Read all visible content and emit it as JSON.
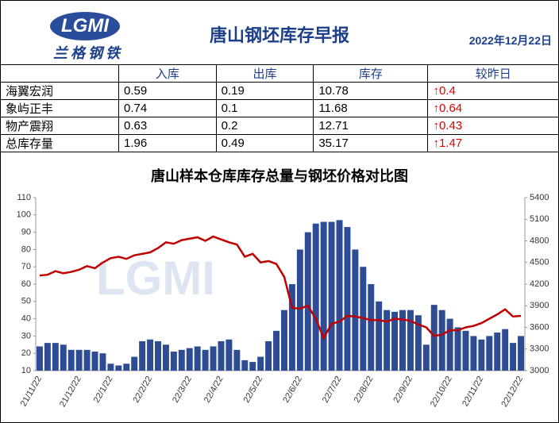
{
  "header": {
    "logo": "LGMI",
    "logo_sub": "兰格钢铁",
    "title": "唐山钢坯库存早报",
    "date": "2022年12月22日"
  },
  "table": {
    "columns": [
      "入库",
      "出库",
      "库存",
      "较昨日"
    ],
    "rows": [
      [
        "海翼宏润",
        "0.59",
        "0.19",
        "10.78",
        "↑0.4"
      ],
      [
        "象屿正丰",
        "0.74",
        "0.1",
        "11.68",
        "↑0.64"
      ],
      [
        "物产震翔",
        "0.63",
        "0.2",
        "12.71",
        "↑0.43"
      ],
      [
        "总库存量",
        "1.96",
        "0.49",
        "35.17",
        "↑1.47"
      ]
    ]
  },
  "chart_data": {
    "type": "bar-line",
    "title": "唐山样本仓库库存总量与钢坯价格对比图",
    "categories": [
      "21/11/22",
      null,
      null,
      null,
      null,
      "21/12/22",
      null,
      null,
      null,
      "22/1/22",
      null,
      null,
      null,
      null,
      "22/2/22",
      null,
      null,
      null,
      null,
      "22/3/22",
      null,
      null,
      null,
      "22/4/22",
      null,
      null,
      null,
      null,
      "22/5/22",
      null,
      null,
      null,
      null,
      "22/6/22",
      null,
      null,
      null,
      null,
      "22/7/22",
      null,
      null,
      null,
      "22/8/22",
      null,
      null,
      null,
      null,
      "22/9/22",
      null,
      null,
      null,
      null,
      "22/10/22",
      null,
      null,
      null,
      "22/11/22",
      null,
      null,
      null,
      null,
      "22/12/22"
    ],
    "series": [
      {
        "color": "#2e4c94",
        "values": [
          24,
          26,
          26,
          25,
          22,
          22,
          22,
          21,
          20,
          14,
          13,
          14,
          18,
          27,
          28,
          27,
          25,
          21,
          22,
          23,
          24,
          22,
          24,
          27,
          28,
          22,
          16,
          15,
          18,
          27,
          33,
          45,
          60,
          80,
          90,
          95,
          96,
          96,
          97,
          93,
          80,
          70,
          60,
          50,
          45,
          44,
          45,
          45,
          42,
          25,
          48,
          45,
          40,
          35,
          33,
          30,
          28,
          30,
          32,
          34,
          26,
          30
        ]
      },
      {
        "color": "#c00000",
        "axis": "y2",
        "values": [
          4320,
          4330,
          4380,
          4350,
          4370,
          4400,
          4450,
          4420,
          4500,
          4560,
          4580,
          4550,
          4600,
          4620,
          4640,
          4700,
          4780,
          4760,
          4810,
          4830,
          4850,
          4800,
          4860,
          4820,
          4780,
          4750,
          4580,
          4620,
          4500,
          4520,
          4480,
          4300,
          3870,
          3860,
          3900,
          3720,
          3450,
          3650,
          3680,
          3760,
          3750,
          3730,
          3700,
          3700,
          3680,
          3720,
          3710,
          3690,
          3640,
          3600,
          3480,
          3500,
          3560,
          3560,
          3600,
          3620,
          3660,
          3720,
          3780,
          3850,
          3750,
          3760
        ]
      }
    ],
    "ylim": [
      10,
      110
    ],
    "yticks": [
      10,
      20,
      30,
      40,
      50,
      60,
      70,
      80,
      90,
      100,
      110
    ],
    "y2lim": [
      3000,
      5400
    ],
    "y2ticks": [
      3000,
      3300,
      3600,
      3900,
      4200,
      4500,
      4800,
      5100,
      5400
    ]
  }
}
